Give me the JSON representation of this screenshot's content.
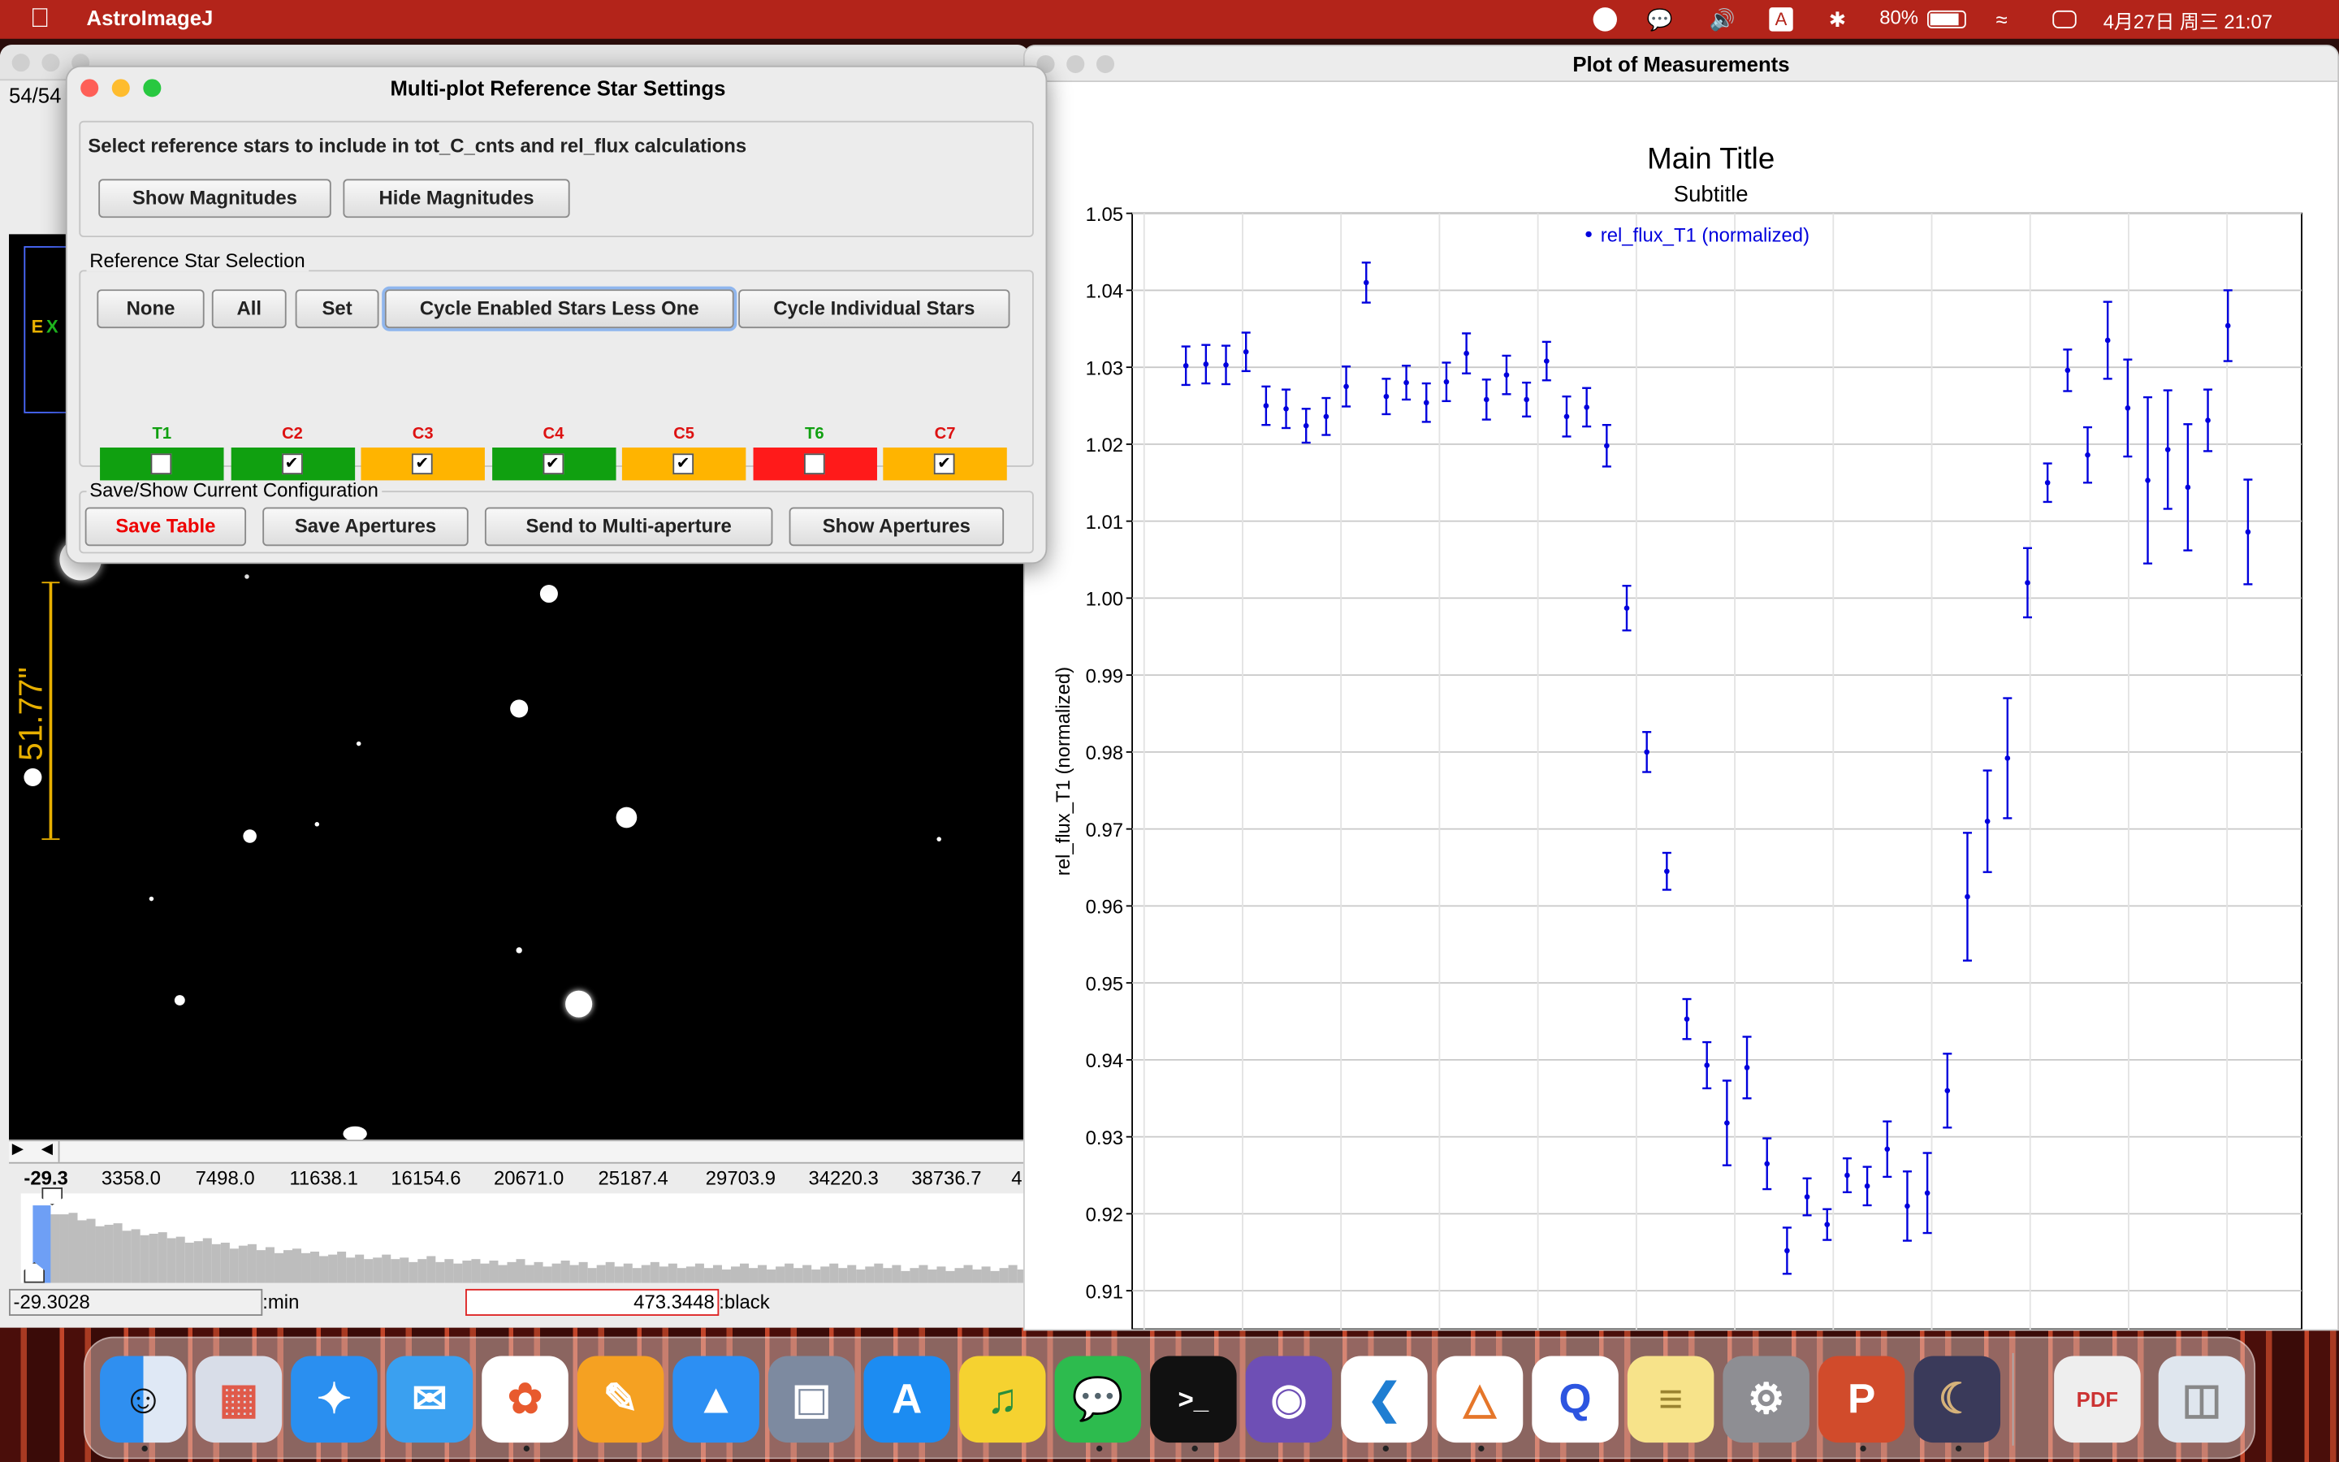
{
  "menubar": {
    "app": "AstroImageJ",
    "battery": "80%",
    "datetime": "4月27日 周三 21:07"
  },
  "image_window": {
    "counter": "54/54",
    "scale_label": "51.77\"",
    "ticks": [
      "-29.3",
      "3358.0",
      "7498.0",
      "11638.1",
      "16154.6",
      "20671.0",
      "25187.4",
      "29703.9",
      "34220.3",
      "38736.7",
      "4"
    ],
    "min_value": "-29.3028",
    "min_label": ":min",
    "black_value": "473.3448",
    "black_label": ":black"
  },
  "dialog": {
    "title": "Multi-plot Reference Star Settings",
    "instruction": "Select reference stars to include in tot_C_cnts and rel_flux calculations",
    "show_mag": "Show Magnitudes",
    "hide_mag": "Hide Magnitudes",
    "selection_group": "Reference Star Selection",
    "btn_none": "None",
    "btn_all": "All",
    "btn_set": "Set",
    "btn_cycle_less": "Cycle Enabled Stars Less One",
    "btn_cycle_ind": "Cycle Individual Stars",
    "stars": [
      {
        "label": "T1",
        "checked": false,
        "color": "#10a010",
        "label_color": "#10a010"
      },
      {
        "label": "C2",
        "checked": true,
        "color": "#10a010",
        "label_color": "#dd1111"
      },
      {
        "label": "C3",
        "checked": true,
        "color": "#ffb400",
        "label_color": "#dd1111"
      },
      {
        "label": "C4",
        "checked": true,
        "color": "#10a010",
        "label_color": "#dd1111"
      },
      {
        "label": "C5",
        "checked": true,
        "color": "#ffb400",
        "label_color": "#dd1111"
      },
      {
        "label": "T6",
        "checked": false,
        "color": "#ff1a1a",
        "label_color": "#10a010"
      },
      {
        "label": "C7",
        "checked": true,
        "color": "#ffb400",
        "label_color": "#dd1111"
      }
    ],
    "config_group": "Save/Show Current Configuration",
    "btn_save_table": "Save Table",
    "btn_save_ap": "Save Apertures",
    "btn_send": "Send to Multi-aperture",
    "btn_show_ap": "Show Apertures"
  },
  "plot_window": {
    "title": "Plot of Measurements"
  },
  "chart_data": {
    "type": "scatter",
    "title": "Main Title",
    "subtitle": "Subtitle",
    "ylabel": "rel_flux_T1 (normalized)",
    "xlabel": "",
    "ylim": [
      0.905,
      1.05
    ],
    "yticks": [
      "1.05",
      "1.04",
      "1.03",
      "1.02",
      "1.01",
      "1.00",
      "0.99",
      "0.98",
      "0.97",
      "0.96",
      "0.95",
      "0.94",
      "0.93",
      "0.92",
      "0.91"
    ],
    "series": [
      {
        "name": "rel_flux_T1 (normalized)",
        "color": "#0000dd",
        "points": [
          [
            1,
            1.0302,
            0.0025
          ],
          [
            2,
            1.0304,
            0.0025
          ],
          [
            3,
            1.0303,
            0.0025
          ],
          [
            4,
            1.032,
            0.0025
          ],
          [
            5,
            1.025,
            0.0025
          ],
          [
            6,
            1.0246,
            0.0025
          ],
          [
            7,
            1.0224,
            0.0022
          ],
          [
            8,
            1.0236,
            0.0024
          ],
          [
            9,
            1.0275,
            0.0026
          ],
          [
            10,
            1.041,
            0.0026
          ],
          [
            11,
            1.0262,
            0.0023
          ],
          [
            12,
            1.028,
            0.0022
          ],
          [
            13,
            1.0254,
            0.0025
          ],
          [
            14,
            1.0281,
            0.0025
          ],
          [
            15,
            1.0318,
            0.0026
          ],
          [
            16,
            1.0258,
            0.0026
          ],
          [
            17,
            1.029,
            0.0025
          ],
          [
            18,
            1.0258,
            0.0022
          ],
          [
            19,
            1.0308,
            0.0025
          ],
          [
            20,
            1.0236,
            0.0026
          ],
          [
            21,
            1.0248,
            0.0025
          ],
          [
            22,
            1.0198,
            0.0027
          ],
          [
            23,
            0.9987,
            0.0029
          ],
          [
            24,
            0.98,
            0.0026
          ],
          [
            25,
            0.9645,
            0.0024
          ],
          [
            26,
            0.9453,
            0.0026
          ],
          [
            27,
            0.9393,
            0.003
          ],
          [
            28,
            0.9318,
            0.0055
          ],
          [
            29,
            0.939,
            0.004
          ],
          [
            30,
            0.9265,
            0.0033
          ],
          [
            31,
            0.9152,
            0.003
          ],
          [
            32,
            0.9222,
            0.0024
          ],
          [
            33,
            0.9186,
            0.002
          ],
          [
            34,
            0.925,
            0.0022
          ],
          [
            35,
            0.9236,
            0.0025
          ],
          [
            36,
            0.9284,
            0.0036
          ],
          [
            37,
            0.921,
            0.0045
          ],
          [
            38,
            0.9227,
            0.0052
          ],
          [
            39,
            0.936,
            0.0048
          ],
          [
            40,
            0.9612,
            0.0083
          ],
          [
            41,
            0.971,
            0.0066
          ],
          [
            42,
            0.9792,
            0.0078
          ],
          [
            43,
            1.002,
            0.0045
          ],
          [
            44,
            1.015,
            0.0025
          ],
          [
            45,
            1.0296,
            0.0027
          ],
          [
            46,
            1.0186,
            0.0036
          ],
          [
            47,
            1.0335,
            0.005
          ],
          [
            48,
            1.0247,
            0.0063
          ],
          [
            49,
            1.0153,
            0.0108
          ],
          [
            50,
            1.0193,
            0.0077
          ],
          [
            51,
            1.0144,
            0.0082
          ],
          [
            52,
            1.0231,
            0.004
          ],
          [
            53,
            1.0354,
            0.0046
          ],
          [
            54,
            1.0086,
            0.0068
          ]
        ]
      }
    ],
    "legend_position": "top-center",
    "grid": true
  }
}
